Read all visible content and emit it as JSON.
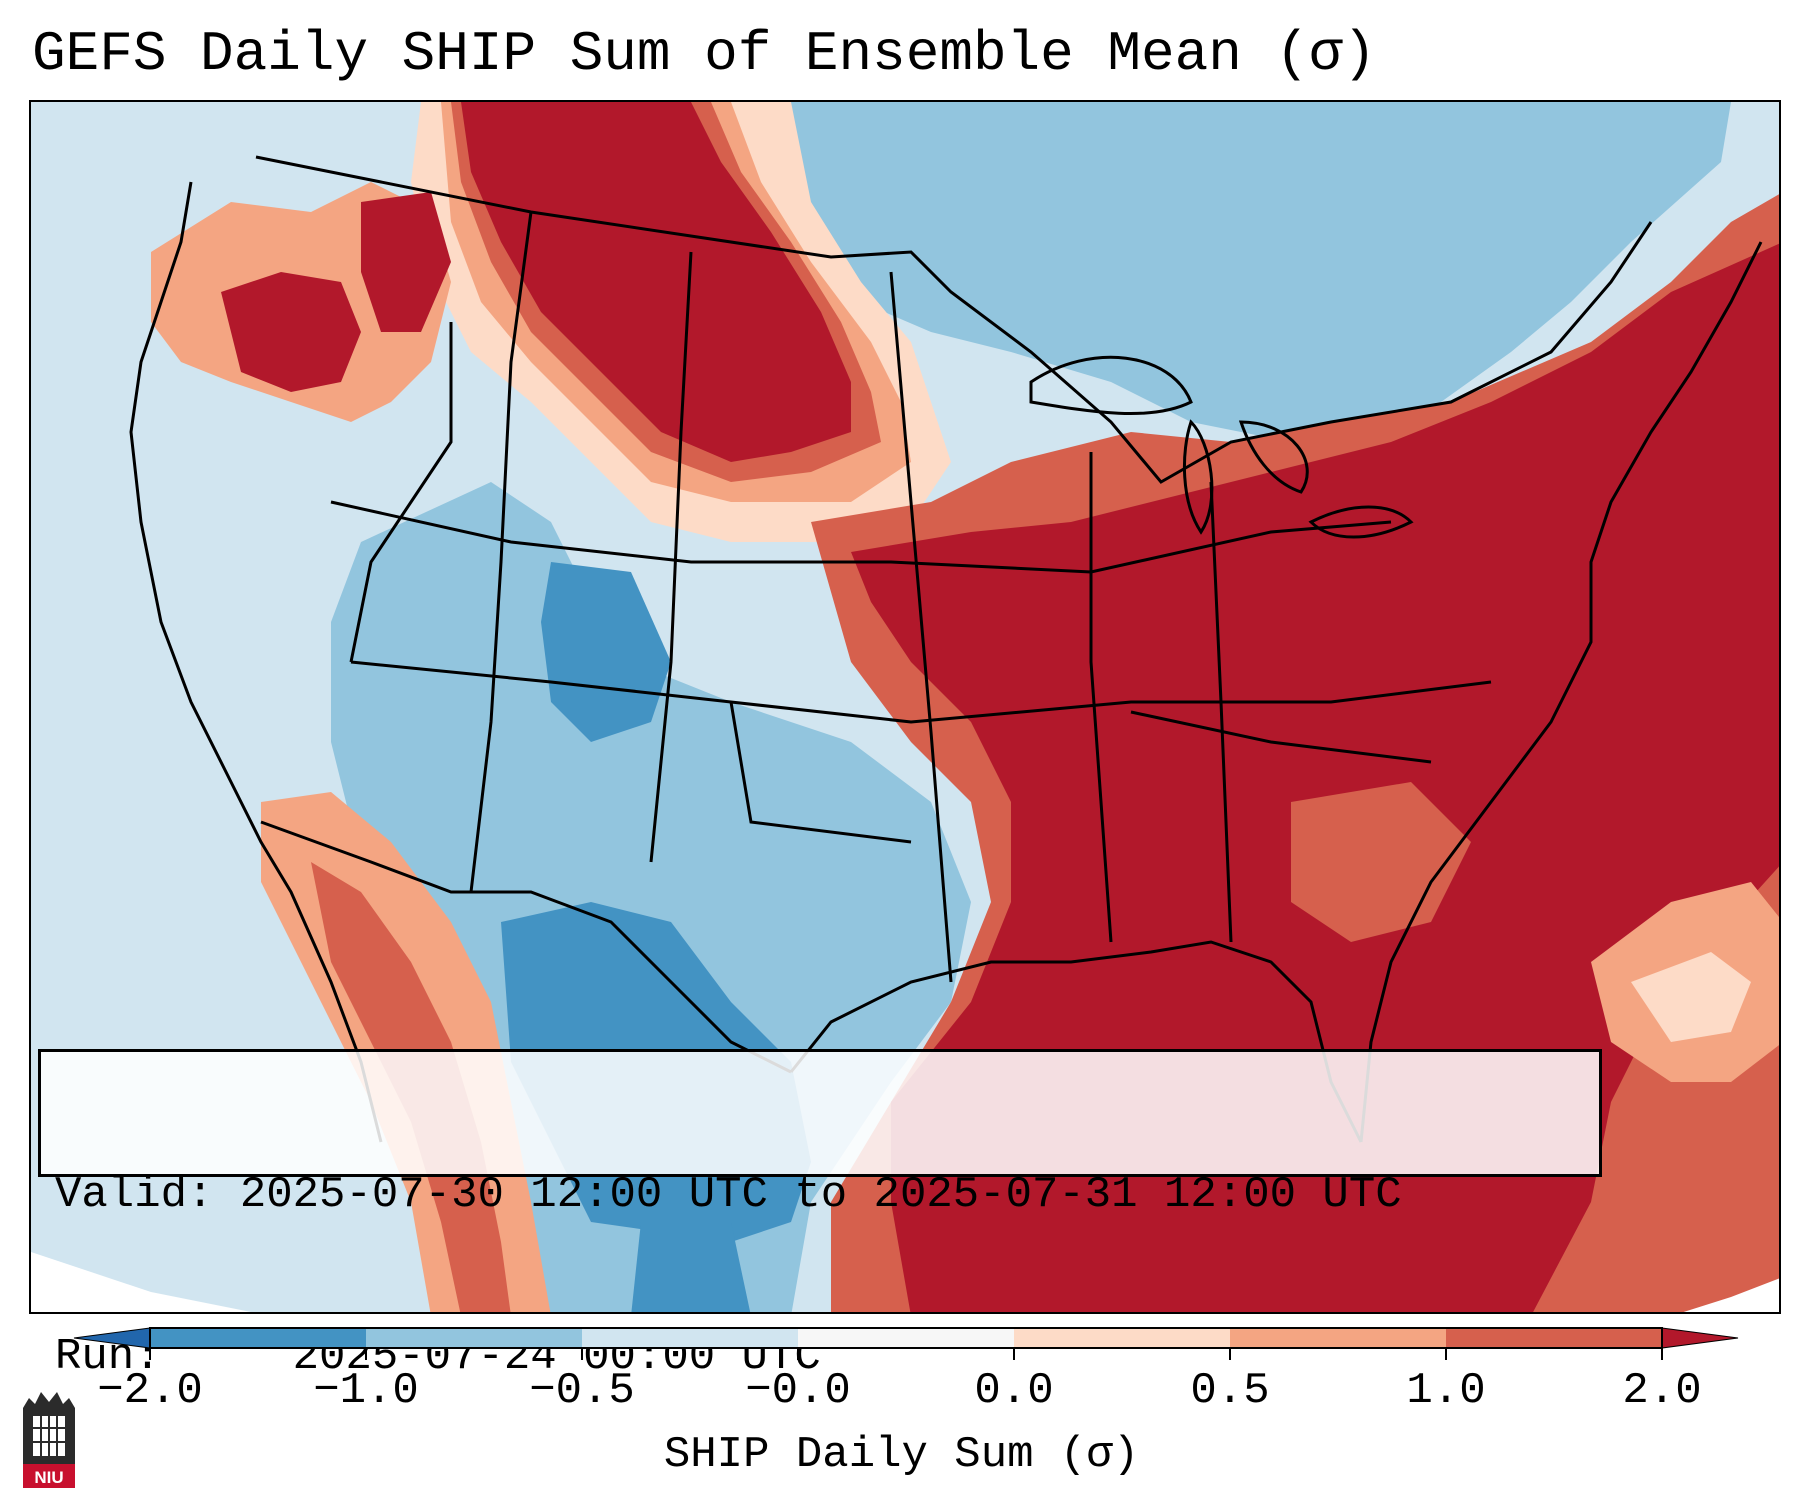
{
  "title": "GEFS Daily SHIP Sum of Ensemble Mean (σ)",
  "info": {
    "valid_label": "Valid:",
    "valid_value": "2025-07-30 12:00 UTC to 2025-07-31 12:00 UTC",
    "run_label": "Run:  ",
    "run_value": "2025-07-24 00:00 UTC"
  },
  "colorbar": {
    "title": "SHIP Daily Sum (σ)",
    "tick_labels": [
      "−2.0",
      "−1.0",
      "−0.5",
      "−0.0",
      "0.0",
      "0.5",
      "1.0",
      "2.0"
    ],
    "bins": [
      {
        "color": "#2166ac",
        "range": "< -2.0"
      },
      {
        "color": "#4393c3",
        "range": "-2.0 to -1.0"
      },
      {
        "color": "#92c5de",
        "range": "-1.0 to -0.5"
      },
      {
        "color": "#d1e5f0",
        "range": "-0.5 to -0.0"
      },
      {
        "color": "#f7f7f7",
        "range": "-0.0 to 0.0"
      },
      {
        "color": "#fddbc7",
        "range": "0.0 to 0.5"
      },
      {
        "color": "#f4a582",
        "range": "0.5 to 1.0"
      },
      {
        "color": "#d6604d",
        "range": "1.0 to 2.0"
      },
      {
        "color": "#b2182b",
        "range": "> 2.0"
      }
    ]
  },
  "colors": {
    "strong_positive": "#b2182b",
    "positive": "#d6604d",
    "weak_positive": "#f4a582",
    "slight_positive": "#fddbc7",
    "neutral": "#f7f7f7",
    "slight_negative": "#d1e5f0",
    "weak_negative": "#92c5de",
    "negative": "#4393c3",
    "strong_negative": "#2166ac"
  },
  "logo": {
    "icon": "niu-logo-icon",
    "text": "NIU"
  }
}
